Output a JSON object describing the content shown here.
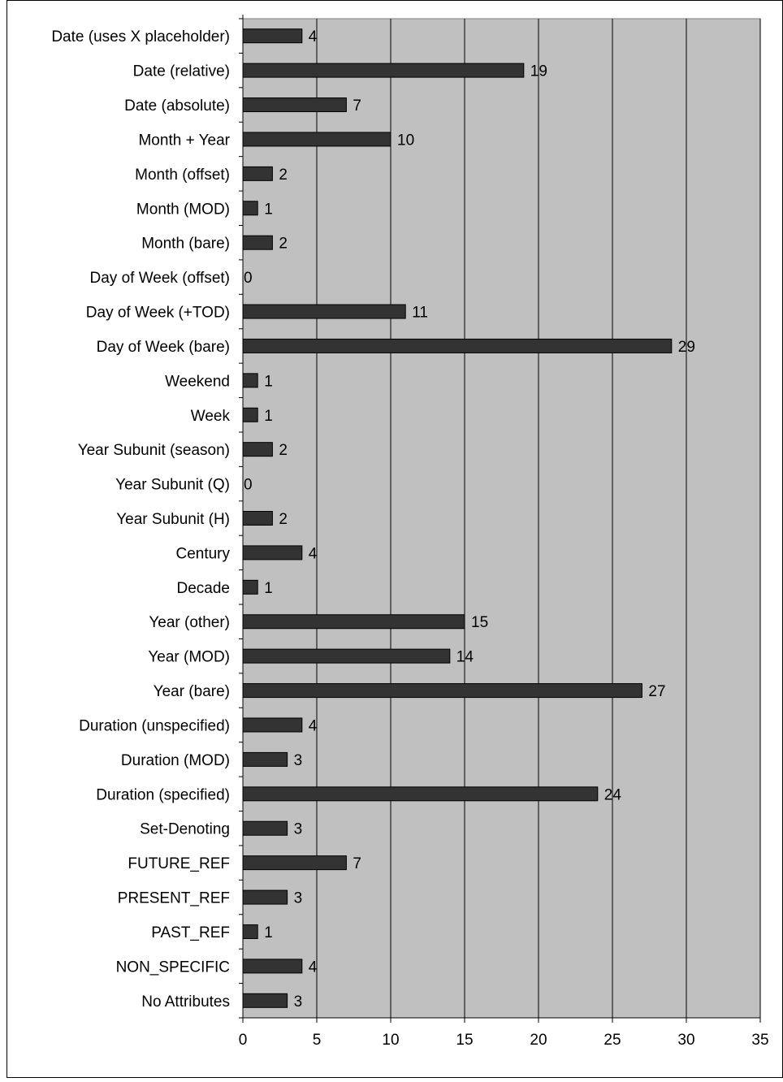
{
  "chart_data": {
    "type": "bar",
    "orientation": "horizontal",
    "title": "",
    "xlabel": "",
    "ylabel": "",
    "xlim": [
      0,
      35
    ],
    "x_ticks": [
      0,
      5,
      10,
      15,
      20,
      25,
      30,
      35
    ],
    "grid": true,
    "plot_background": "#c0c0c0",
    "bar_color": "#333333",
    "categories": [
      "Date (uses X placeholder)",
      "Date (relative)",
      "Date (absolute)",
      "Month + Year",
      "Month (offset)",
      "Month (MOD)",
      "Month (bare)",
      "Day of Week (offset)",
      "Day of Week (+TOD)",
      "Day of Week (bare)",
      "Weekend",
      "Week",
      "Year Subunit (season)",
      "Year Subunit (Q)",
      "Year Subunit (H)",
      "Century",
      "Decade",
      "Year (other)",
      "Year (MOD)",
      "Year (bare)",
      "Duration (unspecified)",
      "Duration (MOD)",
      "Duration (specified)",
      "Set-Denoting",
      "FUTURE_REF",
      "PRESENT_REF",
      "PAST_REF",
      "NON_SPECIFIC",
      "No Attributes"
    ],
    "values": [
      4,
      19,
      7,
      10,
      2,
      1,
      2,
      0,
      11,
      29,
      1,
      1,
      2,
      0,
      2,
      4,
      1,
      15,
      14,
      27,
      4,
      3,
      24,
      3,
      7,
      3,
      1,
      4,
      3
    ]
  }
}
